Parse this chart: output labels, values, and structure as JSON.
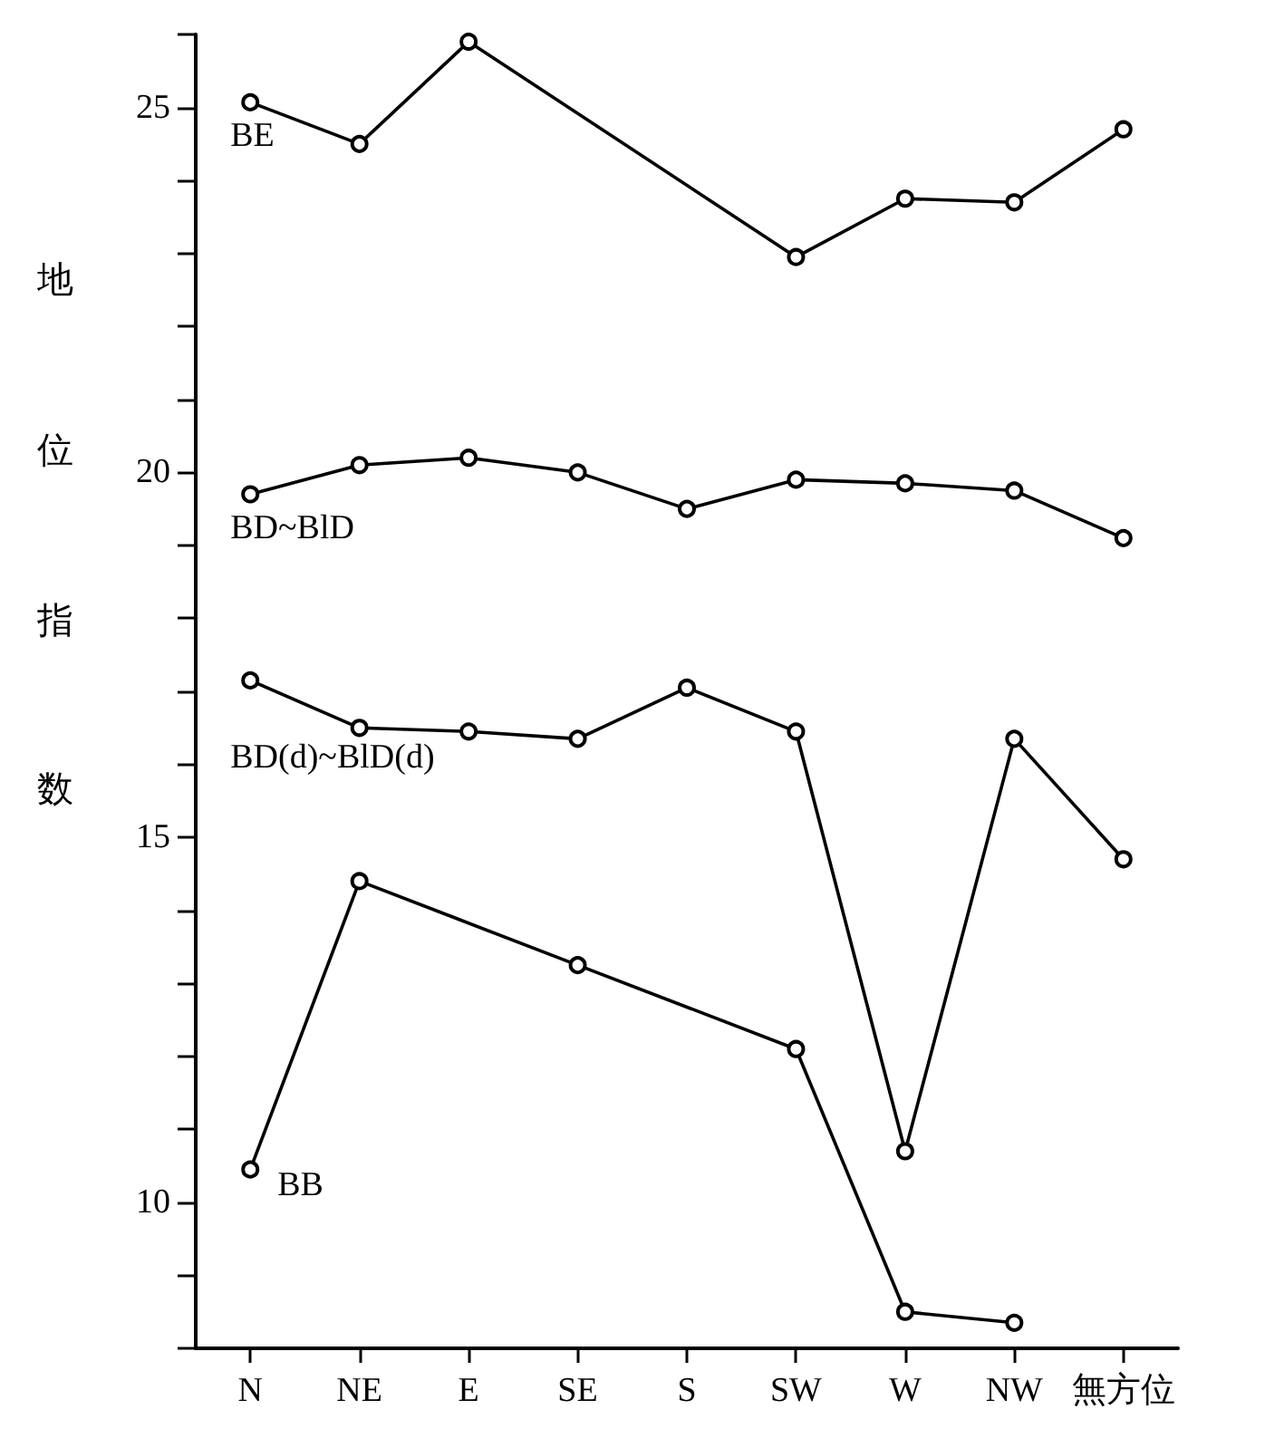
{
  "chart_data": {
    "type": "line",
    "ylabel": "地位指数",
    "categories": [
      "N",
      "NE",
      "E",
      "SE",
      "S",
      "SW",
      "W",
      "NW",
      "無方位"
    ],
    "ylim": [
      8,
      26
    ],
    "yticks": [
      {
        "value": 8,
        "label": null
      },
      {
        "value": 9,
        "label": null
      },
      10,
      {
        "value": 11,
        "label": null
      },
      {
        "value": 12,
        "label": null
      },
      {
        "value": 13,
        "label": null
      },
      {
        "value": 14,
        "label": null
      },
      15,
      {
        "value": 16,
        "label": null
      },
      {
        "value": 17,
        "label": null
      },
      {
        "value": 18,
        "label": null
      },
      {
        "value": 19,
        "label": null
      },
      20,
      {
        "value": 21,
        "label": null
      },
      {
        "value": 22,
        "label": null
      },
      {
        "value": 23,
        "label": null
      },
      {
        "value": 24,
        "label": null
      },
      25,
      {
        "value": 26,
        "label": null
      }
    ],
    "grid": false,
    "legend": false,
    "marker": "circle",
    "line_style": "solid",
    "series": [
      {
        "name": "BE",
        "color": "#000000",
        "values": [
          25.07,
          24.5,
          25.9,
          null,
          null,
          22.95,
          23.75,
          23.7,
          24.7
        ]
      },
      {
        "name": "BD~BlD",
        "color": "#000000",
        "values": [
          19.7,
          20.1,
          20.2,
          20.0,
          19.5,
          19.9,
          19.85,
          19.75,
          19.1
        ]
      },
      {
        "name": "BD(d)~BlD(d)",
        "color": "#000000",
        "values": [
          17.15,
          16.5,
          16.45,
          16.35,
          17.05,
          16.45,
          10.7,
          16.35,
          14.7
        ]
      },
      {
        "name": "BB",
        "color": "#000000",
        "values": [
          10.45,
          14.4,
          null,
          13.25,
          null,
          12.1,
          8.5,
          8.35,
          null
        ]
      }
    ]
  }
}
